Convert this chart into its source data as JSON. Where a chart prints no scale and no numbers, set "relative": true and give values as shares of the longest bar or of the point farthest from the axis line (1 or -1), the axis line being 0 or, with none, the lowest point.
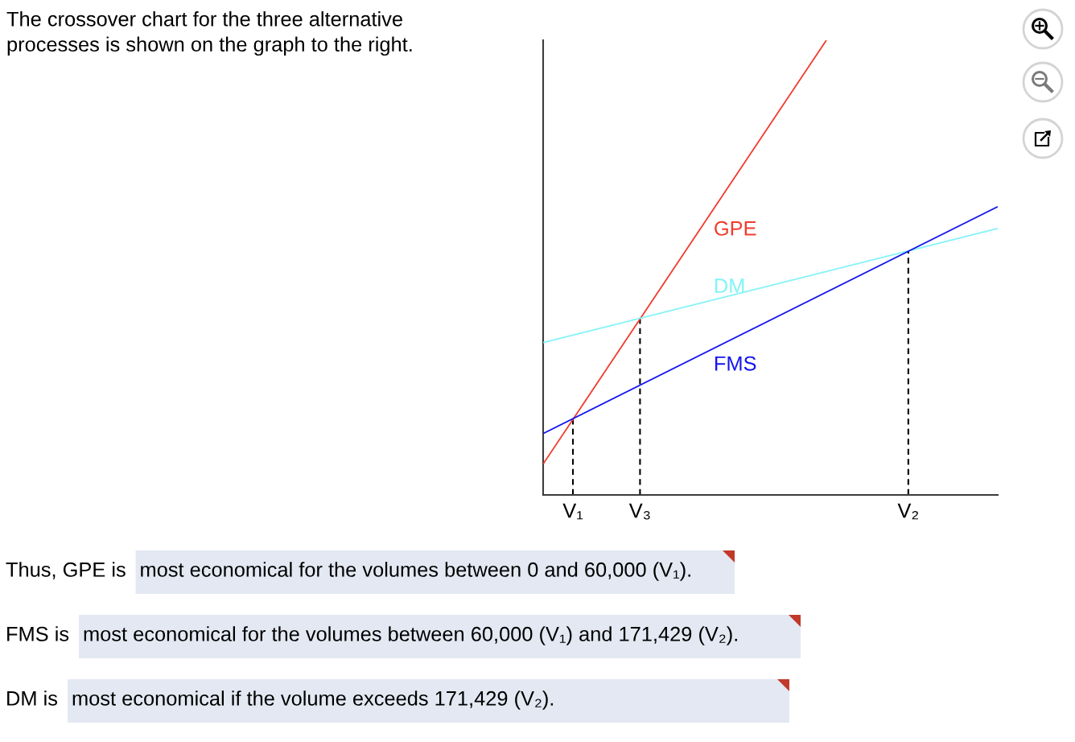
{
  "chart_data": {
    "type": "line",
    "relative": true,
    "tick_labels": "x",
    "categories": [
      null,
      null,
      null,
      null,
      "V₁",
      null,
      null,
      null,
      null,
      null,
      null,
      null,
      null,
      "V₃",
      null,
      null,
      null,
      null,
      null,
      null,
      null,
      null,
      null,
      null,
      null,
      null,
      null,
      null,
      null,
      null,
      null,
      null,
      null,
      null,
      null,
      null,
      null,
      null,
      null,
      null,
      null,
      null,
      null,
      null,
      null,
      null,
      null,
      null,
      null,
      "V₂",
      null,
      null,
      null,
      null,
      null,
      null,
      null,
      null,
      null,
      null,
      null,
      null
    ],
    "series": [
      {
        "name": "GPE",
        "color": "#f03c2d",
        "values": [
          0.068,
          null,
          null,
          null,
          null,
          null,
          null,
          null,
          null,
          null,
          null,
          null,
          null,
          null,
          null,
          null,
          null,
          null,
          null,
          null,
          null,
          null,
          null,
          null,
          null,
          null,
          null,
          null,
          null,
          null,
          null,
          null,
          null,
          null,
          null,
          null,
          null,
          null,
          1,
          null,
          null,
          null,
          null,
          null,
          null,
          null,
          null,
          null,
          null,
          null,
          null,
          null,
          null,
          null,
          null,
          null,
          null,
          null,
          null,
          null,
          null,
          null
        ]
      },
      {
        "name": "DM",
        "color": "#80f4f8",
        "values": [
          0.335,
          null,
          null,
          null,
          null,
          null,
          null,
          null,
          null,
          null,
          null,
          null,
          null,
          null,
          null,
          null,
          null,
          null,
          null,
          null,
          null,
          null,
          null,
          null,
          null,
          null,
          null,
          null,
          null,
          null,
          null,
          null,
          null,
          null,
          null,
          null,
          null,
          null,
          null,
          null,
          null,
          null,
          null,
          null,
          null,
          null,
          null,
          null,
          null,
          null,
          null,
          null,
          null,
          null,
          null,
          null,
          null,
          null,
          null,
          null,
          null,
          0.586
        ]
      },
      {
        "name": "FMS",
        "color": "#1515ee",
        "values": [
          0.135,
          null,
          null,
          null,
          null,
          null,
          null,
          null,
          null,
          null,
          null,
          null,
          null,
          null,
          null,
          null,
          null,
          null,
          null,
          null,
          null,
          null,
          null,
          null,
          null,
          null,
          null,
          null,
          null,
          null,
          null,
          null,
          null,
          null,
          null,
          null,
          null,
          null,
          null,
          null,
          null,
          null,
          null,
          null,
          null,
          null,
          null,
          null,
          null,
          null,
          null,
          null,
          null,
          null,
          null,
          null,
          null,
          null,
          null,
          null,
          null,
          0.634
        ]
      }
    ],
    "ref_lines": [
      {
        "axis": "x",
        "value": "V₁",
        "color": "#000000",
        "line_style": "dashed"
      },
      {
        "axis": "x",
        "value": "V₃",
        "color": "#000000",
        "line_style": "dashed"
      },
      {
        "axis": "x",
        "value": "V₂",
        "color": "#000000",
        "line_style": "dashed"
      }
    ],
    "annotations": [
      "The crossover chart for the three alternative\nprocesses is shown on the graph to the right.",
      "Thus, GPE is",
      "most economical for the volumes between 0 and 60,000 (V₁).",
      "FMS is",
      "most economical for the volumes between 60,000 (V₁) and 171,429 (V₂).",
      "DM is",
      "most economical if the volume exceeds 171,429 (V₂)."
    ]
  }
}
